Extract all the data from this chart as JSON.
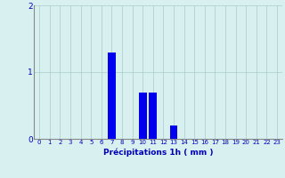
{
  "hours": [
    0,
    1,
    2,
    3,
    4,
    5,
    6,
    7,
    8,
    9,
    10,
    11,
    12,
    13,
    14,
    15,
    16,
    17,
    18,
    19,
    20,
    21,
    22,
    23
  ],
  "values": [
    0,
    0,
    0,
    0,
    0,
    0,
    0,
    1.3,
    0,
    0,
    0.7,
    0.7,
    0,
    0.2,
    0,
    0,
    0,
    0,
    0,
    0,
    0,
    0,
    0,
    0
  ],
  "bar_color": "#0000ee",
  "background_color": "#d8f0f0",
  "grid_color": "#aacccc",
  "xlabel": "Précipitations 1h ( mm )",
  "xlabel_color": "#0000bb",
  "tick_color": "#0000bb",
  "axis_color": "#888888",
  "ylim": [
    0,
    2
  ],
  "yticks": [
    0,
    1,
    2
  ],
  "xlim": [
    -0.5,
    23.5
  ],
  "bar_width": 0.75,
  "tick_fontsize": 5.0,
  "ytick_fontsize": 6.5,
  "xlabel_fontsize": 6.5
}
